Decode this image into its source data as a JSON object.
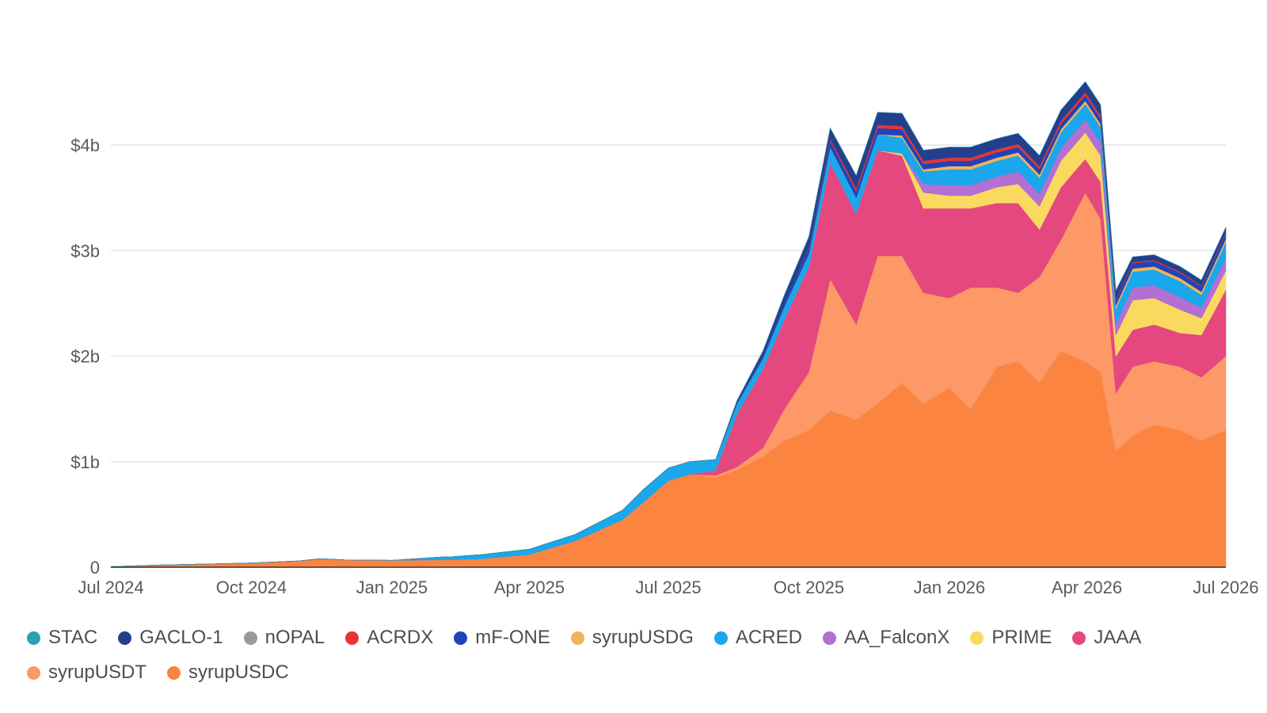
{
  "chart_data": {
    "type": "area",
    "stacked": true,
    "grid": true,
    "legend_position": "bottom",
    "x_ticks": [
      "Jul 2024",
      "Oct 2024",
      "Jan 2025",
      "Apr 2025",
      "Jul 2025",
      "Oct 2025",
      "Jan 2026",
      "Apr 2026",
      "Jul 2026"
    ],
    "y_ticks": [
      "0",
      "$1b",
      "$2b",
      "$3b",
      "$4b"
    ],
    "ylim": [
      0,
      4.5
    ],
    "units": "billions USD",
    "x": [
      "2024-07-01",
      "2024-08-01",
      "2024-09-01",
      "2024-10-01",
      "2024-11-01",
      "2024-11-15",
      "2024-12-01",
      "2025-01-01",
      "2025-02-01",
      "2025-02-10",
      "2025-03-01",
      "2025-04-01",
      "2025-05-01",
      "2025-06-01",
      "2025-06-15",
      "2025-07-01",
      "2025-07-15",
      "2025-08-01",
      "2025-08-15",
      "2025-09-01",
      "2025-09-15",
      "2025-10-01",
      "2025-10-15",
      "2025-11-01",
      "2025-11-15",
      "2025-12-01",
      "2025-12-15",
      "2026-01-01",
      "2026-01-15",
      "2026-02-01",
      "2026-02-15",
      "2026-03-01",
      "2026-03-15",
      "2026-03-31",
      "2026-04-10",
      "2026-04-20",
      "2026-05-01",
      "2026-05-15",
      "2026-06-01",
      "2026-06-15",
      "2026-07-01"
    ],
    "series": [
      {
        "name": "syrupUSDC",
        "color": "#fb8441",
        "values": [
          0.005,
          0.02,
          0.03,
          0.04,
          0.06,
          0.08,
          0.07,
          0.065,
          0.07,
          0.07,
          0.08,
          0.12,
          0.25,
          0.45,
          0.62,
          0.82,
          0.88,
          0.85,
          0.92,
          1.05,
          1.2,
          1.3,
          1.48,
          1.4,
          1.55,
          1.75,
          1.55,
          1.7,
          1.5,
          1.9,
          1.95,
          1.75,
          2.05,
          1.95,
          1.85,
          1.1,
          1.25,
          1.35,
          1.3,
          1.2,
          1.3
        ]
      },
      {
        "name": "syrupUSDT",
        "color": "#fc9966",
        "values": [
          0,
          0,
          0,
          0,
          0,
          0,
          0,
          0,
          0,
          0,
          0,
          0,
          0,
          0,
          0,
          0,
          0,
          0.02,
          0.03,
          0.08,
          0.3,
          0.55,
          1.25,
          0.9,
          1.4,
          1.2,
          1.05,
          0.85,
          1.15,
          0.75,
          0.65,
          1.0,
          1.05,
          1.6,
          1.45,
          0.55,
          0.65,
          0.6,
          0.6,
          0.6,
          0.7
        ]
      },
      {
        "name": "JAAA",
        "color": "#e5487e",
        "values": [
          0,
          0,
          0,
          0,
          0,
          0,
          0,
          0,
          0,
          0,
          0,
          0,
          0,
          0,
          0,
          0,
          0,
          0.05,
          0.5,
          0.75,
          0.85,
          1.0,
          1.1,
          1.05,
          1.0,
          0.95,
          0.8,
          0.85,
          0.75,
          0.8,
          0.85,
          0.45,
          0.5,
          0.32,
          0.35,
          0.35,
          0.35,
          0.35,
          0.32,
          0.4,
          0.63
        ]
      },
      {
        "name": "PRIME",
        "color": "#f9da5e",
        "values": [
          0,
          0,
          0,
          0,
          0,
          0,
          0,
          0,
          0,
          0,
          0,
          0,
          0,
          0,
          0,
          0,
          0,
          0,
          0,
          0,
          0,
          0,
          0,
          0,
          0,
          0.02,
          0.15,
          0.12,
          0.12,
          0.15,
          0.18,
          0.22,
          0.25,
          0.25,
          0.25,
          0.2,
          0.28,
          0.25,
          0.22,
          0.16,
          0.18
        ]
      },
      {
        "name": "AA_FalconX",
        "color": "#b36fd1",
        "values": [
          0,
          0,
          0,
          0,
          0,
          0,
          0,
          0,
          0,
          0,
          0,
          0,
          0,
          0,
          0,
          0,
          0,
          0,
          0,
          0,
          0,
          0,
          0,
          0,
          0,
          0,
          0.08,
          0.1,
          0.1,
          0.1,
          0.12,
          0.12,
          0.12,
          0.12,
          0.12,
          0.1,
          0.12,
          0.12,
          0.12,
          0.1,
          0.12
        ]
      },
      {
        "name": "ACRED",
        "color": "#1aa7eb",
        "values": [
          0,
          0,
          0,
          0,
          0,
          0,
          0,
          0,
          0.025,
          0.03,
          0.04,
          0.05,
          0.06,
          0.09,
          0.12,
          0.12,
          0.12,
          0.1,
          0.1,
          0.1,
          0.12,
          0.12,
          0.15,
          0.15,
          0.15,
          0.15,
          0.12,
          0.15,
          0.15,
          0.15,
          0.15,
          0.15,
          0.15,
          0.15,
          0.15,
          0.15,
          0.15,
          0.15,
          0.15,
          0.12,
          0.15
        ]
      },
      {
        "name": "syrupUSDG",
        "color": "#f0b35a",
        "values": [
          0,
          0,
          0,
          0,
          0,
          0,
          0,
          0,
          0,
          0,
          0,
          0,
          0,
          0,
          0,
          0,
          0,
          0,
          0,
          0,
          0,
          0,
          0,
          0,
          0,
          0.02,
          0.02,
          0.03,
          0.03,
          0.03,
          0.03,
          0.03,
          0.03,
          0.03,
          0.03,
          0.03,
          0.03,
          0.03,
          0.03,
          0.03,
          0.03
        ]
      },
      {
        "name": "mF-ONE",
        "color": "#2043bb",
        "values": [
          0,
          0,
          0,
          0,
          0,
          0,
          0,
          0,
          0,
          0,
          0,
          0,
          0,
          0,
          0,
          0,
          0,
          0,
          0.01,
          0.02,
          0.03,
          0.05,
          0.06,
          0.06,
          0.06,
          0.06,
          0.05,
          0.05,
          0.05,
          0.05,
          0.05,
          0.05,
          0.05,
          0.05,
          0.05,
          0.05,
          0.05,
          0.05,
          0.05,
          0.05,
          0.05
        ]
      },
      {
        "name": "ACRDX",
        "color": "#e83434",
        "values": [
          0,
          0,
          0,
          0,
          0,
          0,
          0,
          0,
          0,
          0,
          0,
          0,
          0,
          0,
          0,
          0,
          0,
          0,
          0,
          0,
          0,
          0.01,
          0.02,
          0.03,
          0.03,
          0.03,
          0.03,
          0.03,
          0.03,
          0.03,
          0.03,
          0.03,
          0.03,
          0.03,
          0.03,
          0.01,
          0.01,
          0.01,
          0.01,
          0.01,
          0.01
        ]
      },
      {
        "name": "nOPAL",
        "color": "#9a9a9a",
        "values": [
          0,
          0,
          0,
          0,
          0,
          0,
          0,
          0,
          0,
          0,
          0,
          0,
          0,
          0,
          0,
          0,
          0,
          0,
          0,
          0,
          0,
          0,
          0,
          0,
          0,
          0,
          0,
          0,
          0,
          0,
          0,
          0,
          0,
          0,
          0,
          0,
          0,
          0,
          0,
          0,
          0
        ]
      },
      {
        "name": "GACLO-1",
        "color": "#243f8c",
        "values": [
          0,
          0,
          0,
          0,
          0,
          0,
          0,
          0,
          0,
          0,
          0,
          0,
          0,
          0,
          0,
          0,
          0,
          0,
          0.02,
          0.05,
          0.08,
          0.1,
          0.1,
          0.12,
          0.12,
          0.12,
          0.1,
          0.1,
          0.1,
          0.1,
          0.1,
          0.1,
          0.1,
          0.1,
          0.1,
          0.08,
          0.05,
          0.05,
          0.05,
          0.05,
          0.05
        ]
      },
      {
        "name": "STAC",
        "color": "#2aa0b0",
        "values": [
          0,
          0,
          0,
          0,
          0,
          0,
          0,
          0,
          0,
          0,
          0,
          0,
          0,
          0,
          0,
          0,
          0,
          0,
          0,
          0,
          0,
          0,
          0,
          0,
          0,
          0,
          0,
          0,
          0,
          0,
          0,
          0,
          0,
          0,
          0,
          0,
          0,
          0,
          0,
          0,
          0
        ]
      }
    ]
  },
  "legend": {
    "items": [
      {
        "label": "STAC",
        "color": "#2aa0b0"
      },
      {
        "label": "GACLO-1",
        "color": "#243f8c"
      },
      {
        "label": "nOPAL",
        "color": "#9a9a9a"
      },
      {
        "label": "ACRDX",
        "color": "#e83434"
      },
      {
        "label": "mF-ONE",
        "color": "#2043bb"
      },
      {
        "label": "syrupUSDG",
        "color": "#f0b35a"
      },
      {
        "label": "ACRED",
        "color": "#1aa7eb"
      },
      {
        "label": "AA_FalconX",
        "color": "#b36fd1"
      },
      {
        "label": "PRIME",
        "color": "#f9da5e"
      },
      {
        "label": "JAAA",
        "color": "#e5487e"
      },
      {
        "label": "syrupUSDT",
        "color": "#fc9966"
      },
      {
        "label": "syrupUSDC",
        "color": "#fb8441"
      }
    ]
  }
}
